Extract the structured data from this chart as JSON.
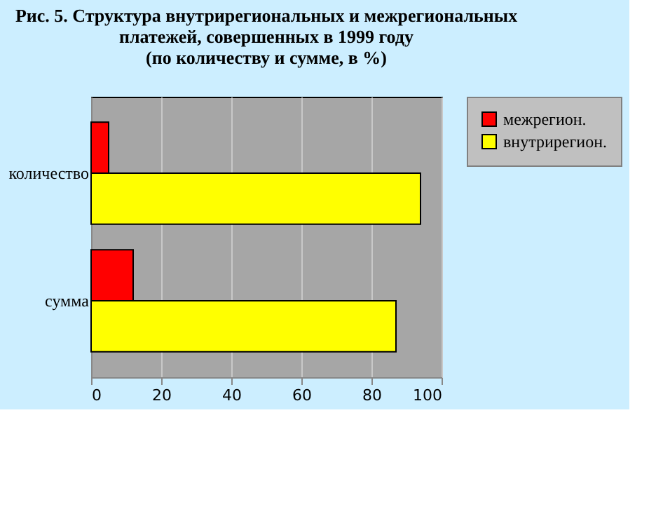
{
  "chart_data": {
    "type": "bar",
    "orientation": "horizontal",
    "title": [
      "Рис. 5. Структура внутрирегиональных и межрегиональных",
      "платежей, совершенных в 1999 году",
      "(по количеству и сумме, в %)"
    ],
    "categories": [
      "количество",
      "сумма"
    ],
    "series": [
      {
        "name": "межрегион.",
        "color": "#ff0000",
        "values": [
          5,
          12
        ]
      },
      {
        "name": "внутрирегион.",
        "color": "#ffff00",
        "values": [
          94,
          87
        ]
      }
    ],
    "xlim": [
      0,
      100
    ],
    "xticks": [
      0,
      20,
      40,
      60,
      80,
      100
    ],
    "grid": "x",
    "legend": "right"
  }
}
